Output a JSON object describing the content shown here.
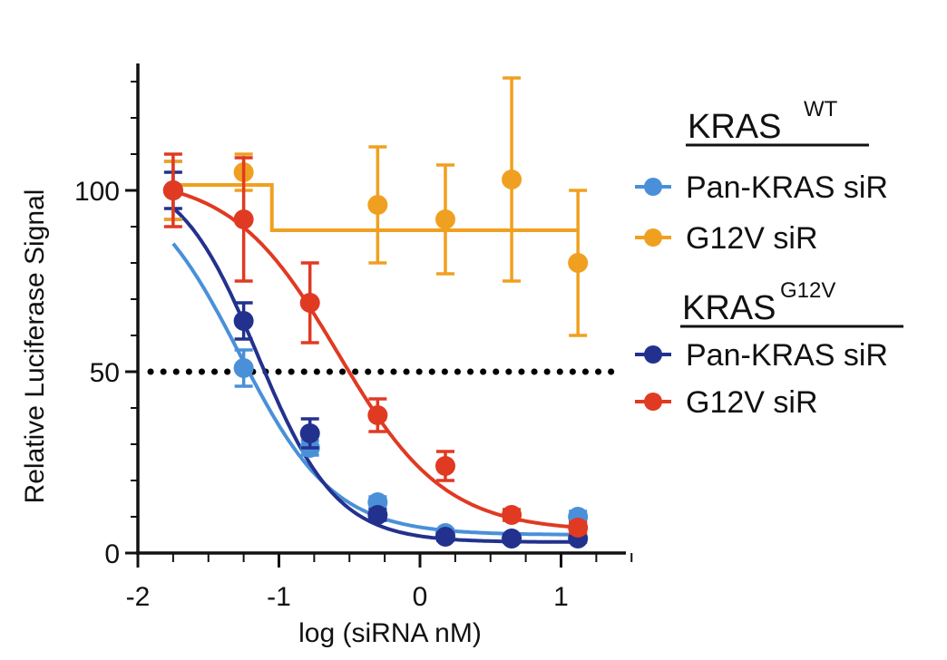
{
  "chart_data": {
    "type": "scatter",
    "title": "",
    "xlabel": "log (siRNA nM)",
    "ylabel": "Relative Luciferase Signal",
    "xlim": [
      -2,
      1.5
    ],
    "ylim": [
      0,
      135
    ],
    "x_ticks": [
      -2,
      -1,
      0,
      1
    ],
    "x_tick_labels": [
      "-2",
      "-1",
      "0",
      "1"
    ],
    "y_ticks": [
      0,
      50,
      100
    ],
    "y_tick_labels": [
      "0",
      "50",
      "100"
    ],
    "reference_line": {
      "y": 50,
      "style": "dotted"
    },
    "legend_groups": [
      {
        "heading": "KRAS",
        "superscript": "WT",
        "series_names": [
          "Pan-KRAS siR",
          "G12V siR"
        ]
      },
      {
        "heading": "KRAS",
        "superscript": "G12V",
        "series_names": [
          "Pan-KRAS siR",
          "G12V siR"
        ]
      }
    ],
    "series": [
      {
        "name": "Pan-KRAS siR",
        "group": "KRAS WT",
        "color": "#4a90d9",
        "x": [
          -1.75,
          -1.25,
          -0.78,
          -0.3,
          0.18,
          0.65,
          1.12
        ],
        "y": [
          100,
          51,
          29,
          14,
          5.5,
          4,
          10
        ],
        "err": [
          8,
          5,
          2,
          1.5,
          1,
          1,
          1.5
        ],
        "fit": {
          "kind": "4pl",
          "top": 105,
          "bottom": 5,
          "logIC50": -1.28,
          "hill": -1.3
        }
      },
      {
        "name": "G12V siR",
        "group": "KRAS WT",
        "color": "#f0a020",
        "x": [
          -1.75,
          -1.25,
          -0.3,
          0.18,
          0.65,
          1.12
        ],
        "y": [
          100,
          105,
          96,
          92,
          103,
          80
        ],
        "err": [
          8,
          5,
          16,
          15,
          28,
          20
        ],
        "fit": {
          "kind": "step",
          "x_break": -1.05,
          "before": 101.5,
          "after": 89
        }
      },
      {
        "name": "Pan-KRAS siR",
        "group": "KRAS G12V",
        "color": "#23318e",
        "x": [
          -1.75,
          -1.25,
          -0.78,
          -0.3,
          0.18,
          0.65,
          1.12
        ],
        "y": [
          100,
          64,
          33,
          10.5,
          4.5,
          4,
          4
        ],
        "err": [
          5,
          5,
          4,
          1.5,
          1,
          1,
          1
        ],
        "fit": {
          "kind": "4pl",
          "top": 106,
          "bottom": 3,
          "logIC50": -1.15,
          "hill": -1.55
        }
      },
      {
        "name": "G12V siR",
        "group": "KRAS G12V",
        "color": "#e03a22",
        "x": [
          -1.75,
          -1.25,
          -0.78,
          -0.3,
          0.18,
          0.65,
          1.12
        ],
        "y": [
          100,
          92,
          69,
          38,
          24,
          10.5,
          7
        ],
        "err": [
          10,
          17,
          11,
          4.5,
          4,
          1.5,
          1.5
        ],
        "fit": {
          "kind": "4pl",
          "top": 104,
          "bottom": 6,
          "logIC50": -0.58,
          "hill": -1.15
        }
      }
    ]
  }
}
